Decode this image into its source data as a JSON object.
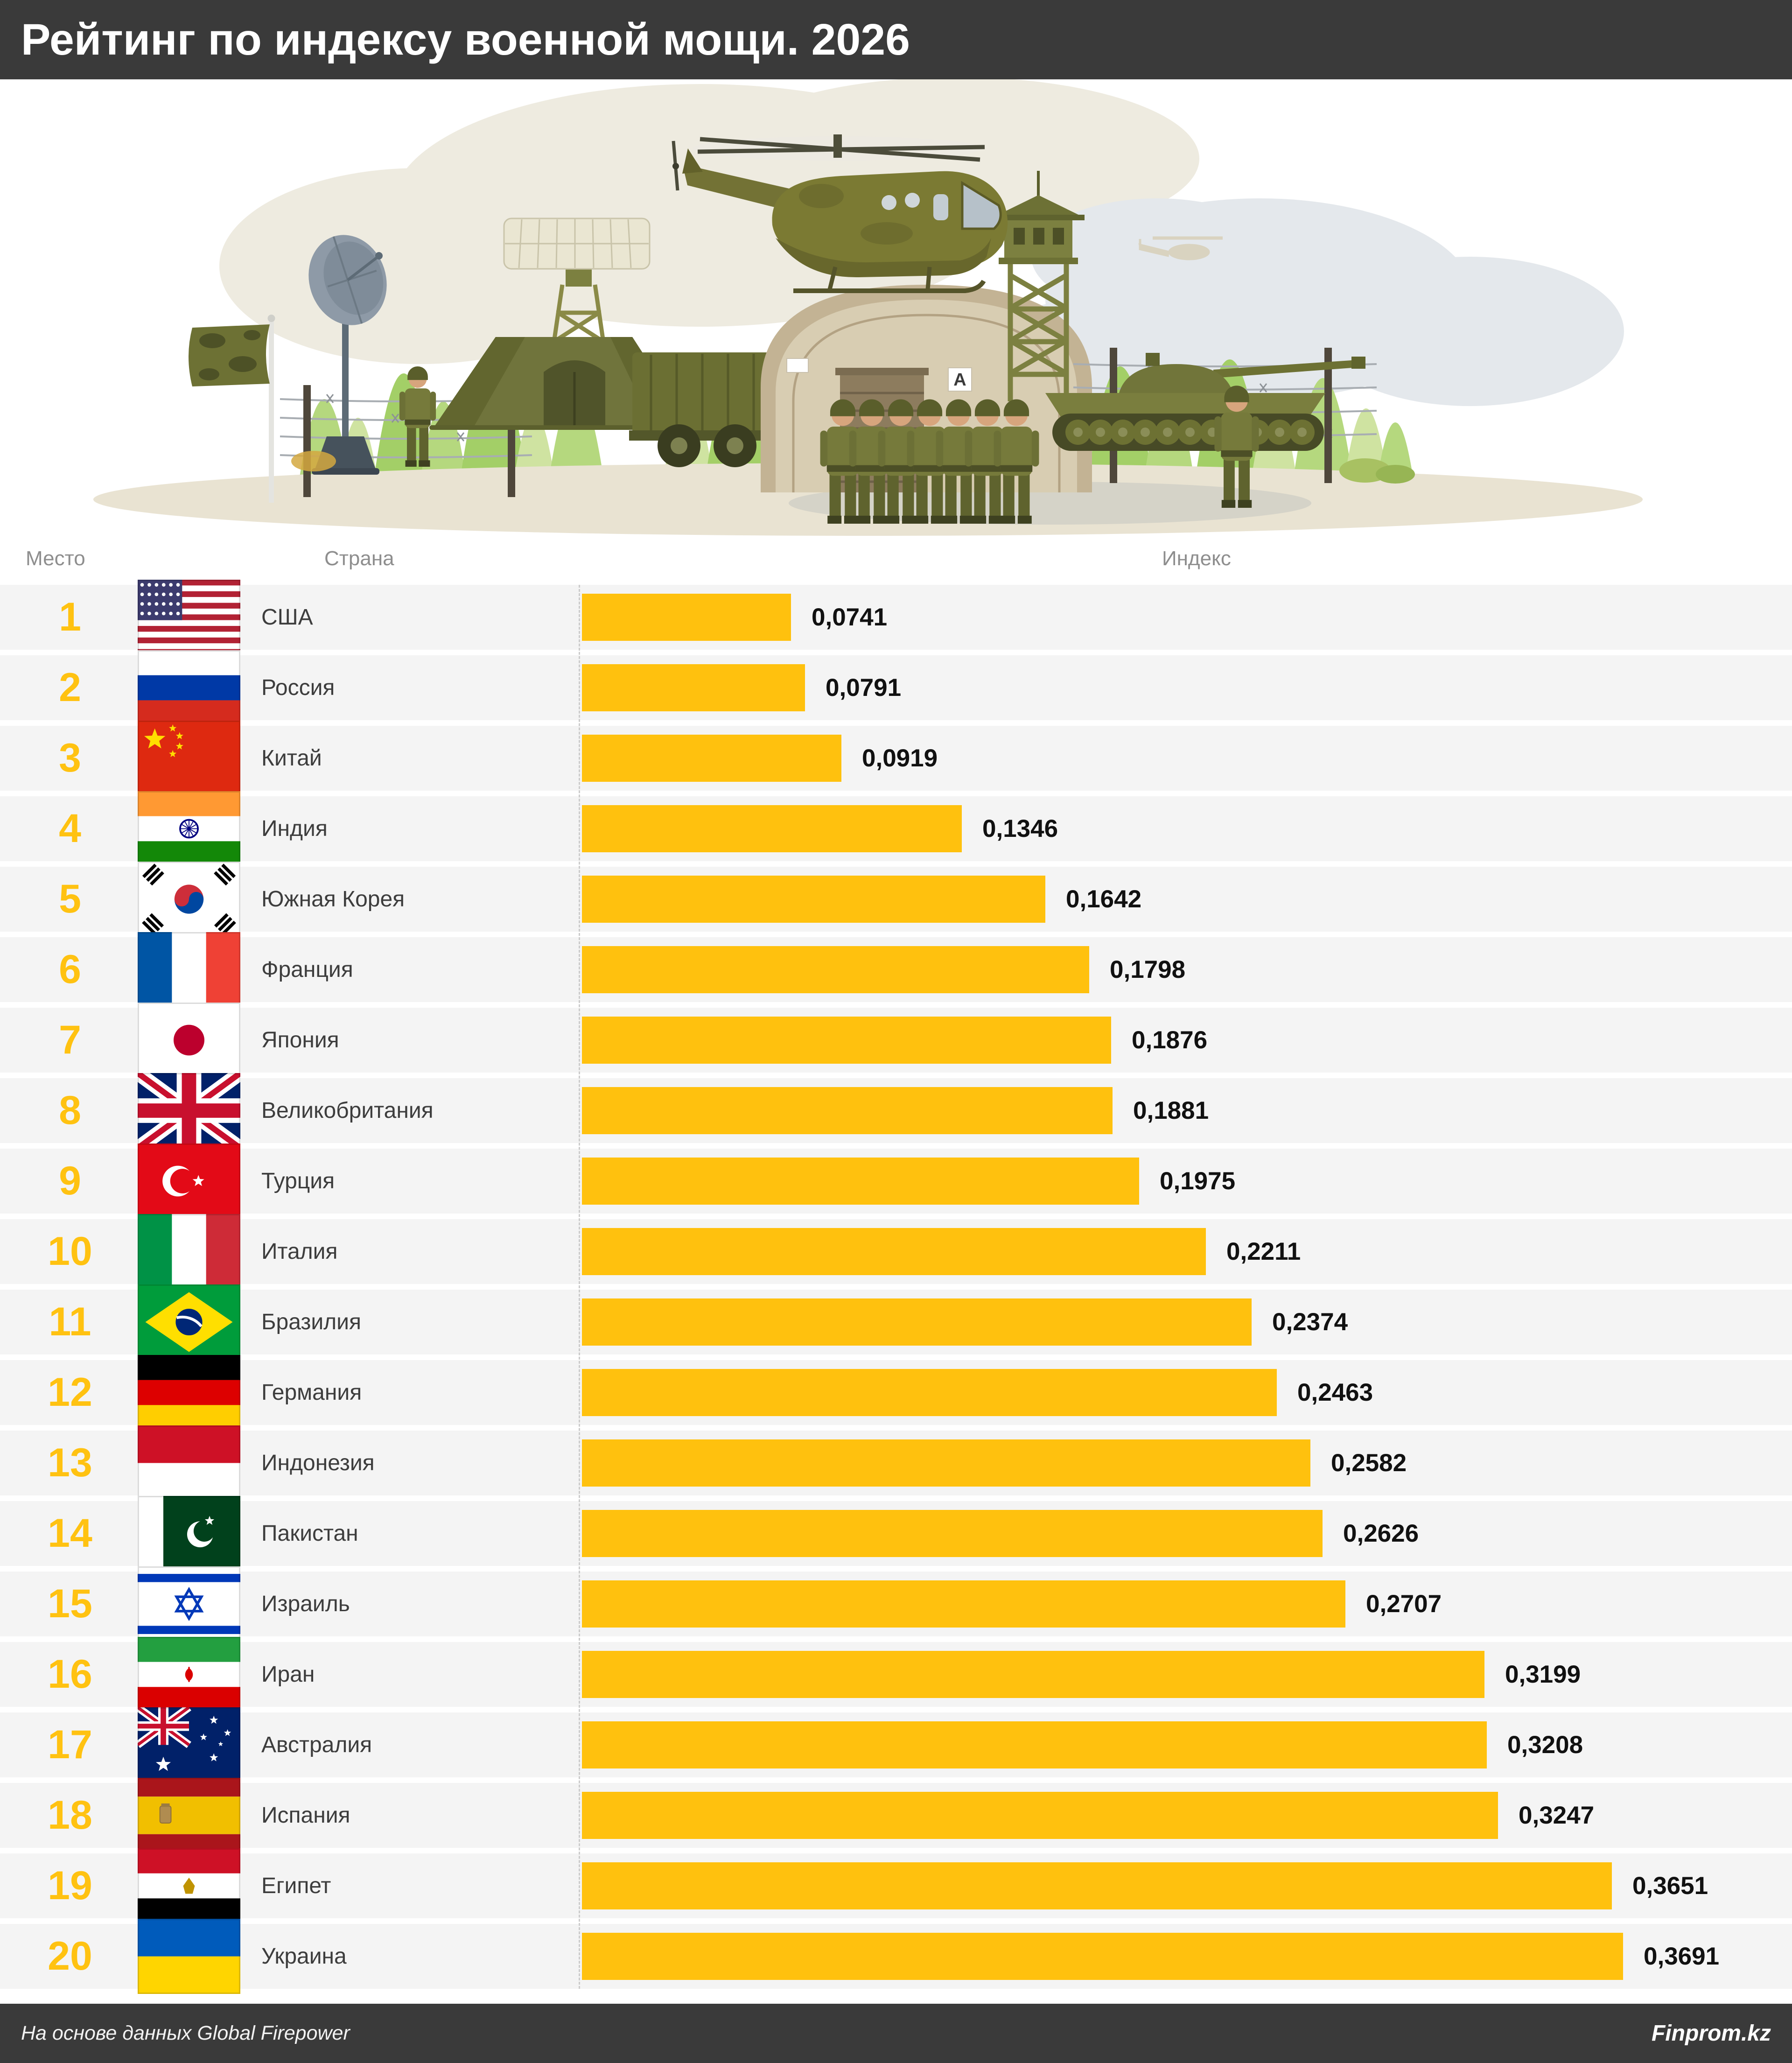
{
  "title": "Рейтинг по индексу военной мощи. 2026",
  "table": {
    "headers": {
      "rank": "Место",
      "country": "Страна",
      "index": "Индекс"
    },
    "rows": [
      {
        "rank": "1",
        "country": "США",
        "flag": "usa",
        "value": "0,0741",
        "value_num": 0.0741
      },
      {
        "rank": "2",
        "country": "Россия",
        "flag": "rus",
        "value": "0,0791",
        "value_num": 0.0791
      },
      {
        "rank": "3",
        "country": "Китай",
        "flag": "chn",
        "value": "0,0919",
        "value_num": 0.0919
      },
      {
        "rank": "4",
        "country": "Индия",
        "flag": "ind",
        "value": "0,1346",
        "value_num": 0.1346
      },
      {
        "rank": "5",
        "country": "Южная Корея",
        "flag": "kor",
        "value": "0,1642",
        "value_num": 0.1642
      },
      {
        "rank": "6",
        "country": "Франция",
        "flag": "fra",
        "value": "0,1798",
        "value_num": 0.1798
      },
      {
        "rank": "7",
        "country": "Япония",
        "flag": "jpn",
        "value": "0,1876",
        "value_num": 0.1876
      },
      {
        "rank": "8",
        "country": "Великобритания",
        "flag": "gbr",
        "value": "0,1881",
        "value_num": 0.1881
      },
      {
        "rank": "9",
        "country": "Турция",
        "flag": "tur",
        "value": "0,1975",
        "value_num": 0.1975
      },
      {
        "rank": "10",
        "country": "Италия",
        "flag": "ita",
        "value": "0,2211",
        "value_num": 0.2211
      },
      {
        "rank": "11",
        "country": "Бразилия",
        "flag": "bra",
        "value": "0,2374",
        "value_num": 0.2374
      },
      {
        "rank": "12",
        "country": "Германия",
        "flag": "ger",
        "value": "0,2463",
        "value_num": 0.2463
      },
      {
        "rank": "13",
        "country": "Индонезия",
        "flag": "idn",
        "value": "0,2582",
        "value_num": 0.2582
      },
      {
        "rank": "14",
        "country": "Пакистан",
        "flag": "pak",
        "value": "0,2626",
        "value_num": 0.2626
      },
      {
        "rank": "15",
        "country": "Израиль",
        "flag": "isr",
        "value": "0,2707",
        "value_num": 0.2707
      },
      {
        "rank": "16",
        "country": "Иран",
        "flag": "irn",
        "value": "0,3199",
        "value_num": 0.3199
      },
      {
        "rank": "17",
        "country": "Австралия",
        "flag": "aus",
        "value": "0,3208",
        "value_num": 0.3208
      },
      {
        "rank": "18",
        "country": "Испания",
        "flag": "esp",
        "value": "0,3247",
        "value_num": 0.3247
      },
      {
        "rank": "19",
        "country": "Египет",
        "flag": "egy",
        "value": "0,3651",
        "value_num": 0.3651
      },
      {
        "rank": "20",
        "country": "Украина",
        "flag": "ukr",
        "value": "0,3691",
        "value_num": 0.3691
      }
    ]
  },
  "illustration": {
    "hangar_sign": "A"
  },
  "footer": {
    "source": "На основе данных Global Firepower",
    "brand": "Finprom.kz"
  },
  "colors": {
    "bar": "#FFC10E",
    "rank": "#FFC211",
    "header_bar": "#3A3A3A",
    "row_band": "#F4F4F4"
  },
  "chart_data": {
    "type": "bar",
    "orientation": "horizontal",
    "title": "Рейтинг по индексу военной мощи. 2026",
    "categories": [
      "США",
      "Россия",
      "Китай",
      "Индия",
      "Южная Корея",
      "Франция",
      "Япония",
      "Великобритания",
      "Турция",
      "Италия",
      "Бразилия",
      "Германия",
      "Индонезия",
      "Пакистан",
      "Израиль",
      "Иран",
      "Австралия",
      "Испания",
      "Египет",
      "Украина"
    ],
    "values": [
      0.0741,
      0.0791,
      0.0919,
      0.1346,
      0.1642,
      0.1798,
      0.1876,
      0.1881,
      0.1975,
      0.2211,
      0.2374,
      0.2463,
      0.2582,
      0.2626,
      0.2707,
      0.3199,
      0.3208,
      0.3247,
      0.3651,
      0.3691
    ],
    "value_labels": [
      "0,0741",
      "0,0791",
      "0,0919",
      "0,1346",
      "0,1642",
      "0,1798",
      "0,1876",
      "0,1881",
      "0,1975",
      "0,2211",
      "0,2374",
      "0,2463",
      "0,2582",
      "0,2626",
      "0,2707",
      "0,3199",
      "0,3208",
      "0,3247",
      "0,3651",
      "0,3691"
    ],
    "ranks": [
      1,
      2,
      3,
      4,
      5,
      6,
      7,
      8,
      9,
      10,
      11,
      12,
      13,
      14,
      15,
      16,
      17,
      18,
      19,
      20
    ],
    "xlabel": "Индекс",
    "ylabel": "Страна",
    "xlim": [
      0,
      0.4
    ],
    "grid": false,
    "legend": "none",
    "bar_color": "#FFC10E",
    "source": "Global Firepower"
  }
}
